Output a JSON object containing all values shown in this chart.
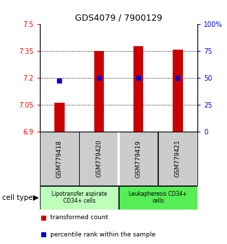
{
  "title": "GDS4079 / 7900129",
  "samples": [
    "GSM779418",
    "GSM779420",
    "GSM779419",
    "GSM779421"
  ],
  "red_values": [
    7.063,
    7.352,
    7.378,
    7.36
  ],
  "blue_values": [
    7.185,
    7.2,
    7.202,
    7.2
  ],
  "ymin": 6.9,
  "ymax": 7.5,
  "yticks_left": [
    6.9,
    7.05,
    7.2,
    7.35,
    7.5
  ],
  "yticks_right": [
    0,
    25,
    50,
    75,
    100
  ],
  "yticks_right_labels": [
    "0",
    "25",
    "50",
    "75",
    "100%"
  ],
  "grid_lines": [
    7.05,
    7.2,
    7.35
  ],
  "cell_type_label": "cell type",
  "groups": [
    {
      "label": "Lipotransfer aspirate\nCD34+ cells",
      "color": "#bbffbb",
      "start": 0,
      "end": 2
    },
    {
      "label": "Leukapheresis CD34+\ncells",
      "color": "#55ee55",
      "start": 2,
      "end": 4
    }
  ],
  "legend_red_label": "transformed count",
  "legend_blue_label": "percentile rank within the sample",
  "bar_color": "#cc0000",
  "dot_color": "#0000cc",
  "header_bg": "#cccccc",
  "bar_width": 0.25
}
